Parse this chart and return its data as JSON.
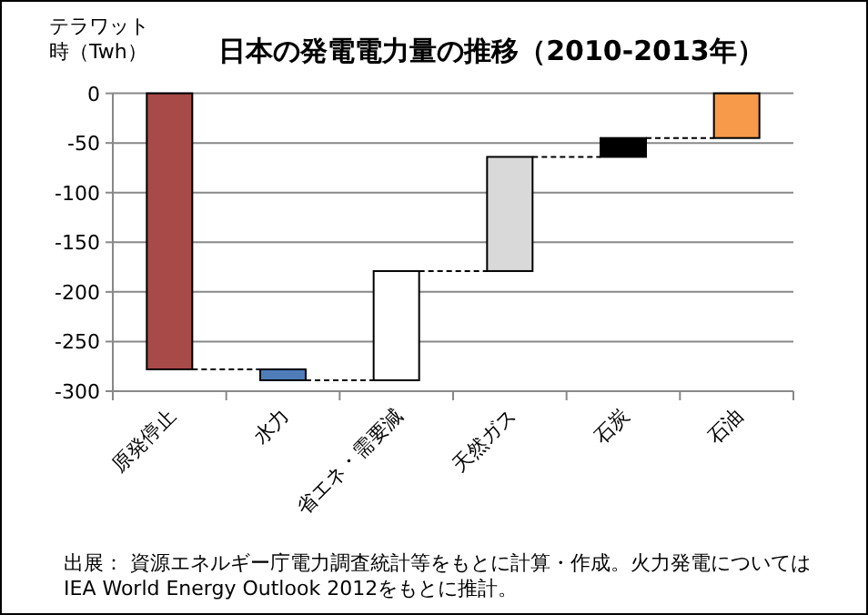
{
  "chart_data": {
    "type": "bar",
    "title": "日本の発電電力量の推移（2010-2013年）",
    "ylabel": "テラワット時（Twh）",
    "categories": [
      "原発停止",
      "水力",
      "省エネ・需要減",
      "天然ガス",
      "石炭",
      "石油"
    ],
    "values": [
      -278,
      -11,
      110,
      115,
      19,
      45
    ],
    "base": [
      0,
      -278,
      -289,
      -179,
      -64,
      -45
    ],
    "colors": [
      "#a84a48",
      "#4f7db9",
      "#ffffff",
      "#d9d9d9",
      "#000000",
      "#f79a4a"
    ],
    "ylim": [
      -300,
      0
    ],
    "yticks": [
      -300,
      -250,
      -200,
      -150,
      -100,
      -50,
      0
    ],
    "grid": "y",
    "annotations": [
      "出展： 資源エネルギー庁電力調査統計等をもとに計算・作成。火力発電についてはIEA World Energy Outlook 2012をもとに推計。"
    ]
  }
}
